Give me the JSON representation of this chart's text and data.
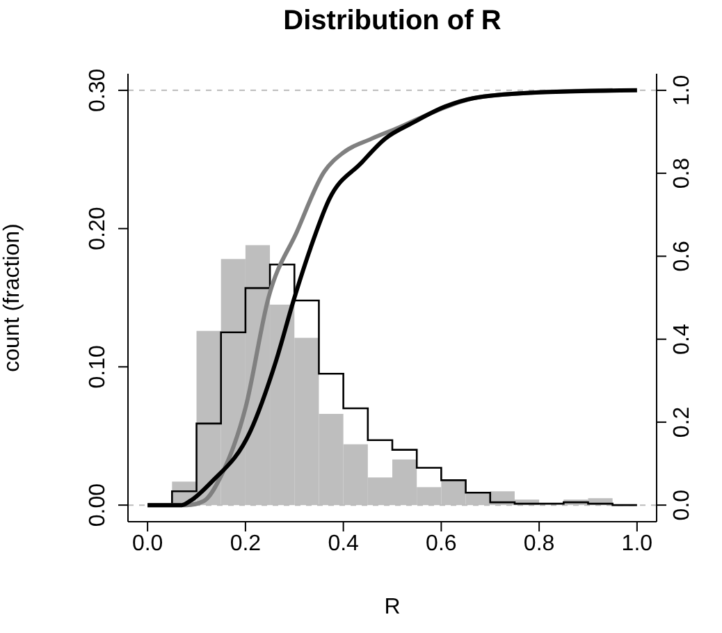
{
  "chart_data": {
    "type": "histogram",
    "title": "Distribution of R",
    "xlabel": "R",
    "ylabel": "count (fraction)",
    "bins": [
      0,
      0.05,
      0.1,
      0.15,
      0.2,
      0.25,
      0.3,
      0.35,
      0.4,
      0.45,
      0.5,
      0.55,
      0.6,
      0.65,
      0.7,
      0.75,
      0.8,
      0.85,
      0.9,
      0.95,
      1.0
    ],
    "series": [
      {
        "type": "histogram",
        "color": "#bebebe",
        "values": [
          0,
          0.017,
          0.126,
          0.178,
          0.188,
          0.145,
          0.121,
          0.066,
          0.044,
          0.02,
          0.033,
          0.013,
          0.018,
          0.009,
          0.01,
          0.004,
          null,
          0.004,
          0.005,
          0
        ]
      },
      {
        "type": "step",
        "color": "#000000",
        "x": [
          0,
          0.05,
          0.1,
          0.15,
          0.2,
          0.25,
          0.3,
          0.35,
          0.4,
          0.45,
          0.5,
          0.55,
          0.6,
          0.65,
          0.7,
          0.75,
          0.8,
          0.85,
          0.9,
          0.95,
          1.0
        ],
        "values": [
          0,
          0.01,
          0.059,
          0.125,
          0.157,
          0.174,
          0.148,
          0.095,
          0.07,
          0.047,
          0.04,
          0.027,
          0.018,
          0.009,
          0.002,
          0.001,
          0.001,
          0.002,
          0.001,
          0,
          0
        ]
      },
      {
        "type": "line",
        "axis": "y2",
        "color": "#808080",
        "x": [
          0,
          0.08,
          0.115,
          0.15,
          0.2,
          0.247,
          0.305,
          0.361,
          0.4,
          0.457,
          0.513,
          0.589,
          0.665,
          0.778,
          0.95
        ],
        "values": [
          0,
          0,
          0.01,
          0.07,
          0.234,
          0.5,
          0.659,
          0.804,
          0.85,
          0.883,
          0.91,
          0.95,
          0.981,
          0.994,
          1.0
        ]
      },
      {
        "type": "line",
        "axis": "y2",
        "color": "#000000",
        "x": [
          0,
          0.07,
          0.087,
          0.13,
          0.21,
          0.262,
          0.3,
          0.333,
          0.371,
          0.4375,
          0.485,
          0.542,
          0.608,
          0.665,
          0.78,
          1.0
        ],
        "values": [
          0,
          0,
          0.01,
          0.055,
          0.178,
          0.346,
          0.5,
          0.62,
          0.737,
          0.826,
          0.883,
          0.922,
          0.961,
          0.981,
          0.994,
          1.0
        ]
      }
    ],
    "xlim": [
      -0.04,
      1.04
    ],
    "xticks": [
      {
        "value": 0,
        "label": "0.0"
      },
      {
        "value": 0.2,
        "label": "0.2"
      },
      {
        "value": 0.4,
        "label": "0.4"
      },
      {
        "value": 0.6,
        "label": "0.6"
      },
      {
        "value": 0.8,
        "label": "0.8"
      },
      {
        "value": 1,
        "label": "1.0"
      }
    ],
    "ylim": [
      -0.012,
      0.312
    ],
    "yticks": [
      {
        "value": 0,
        "label": "0.00"
      },
      {
        "value": 0.1,
        "label": "0.10"
      },
      {
        "value": 0.2,
        "label": "0.20"
      },
      {
        "value": 0.3,
        "label": "0.30"
      }
    ],
    "y2lim": [
      -0.04,
      1.04
    ],
    "y2ticks": [
      {
        "value": 0,
        "label": "0.0"
      },
      {
        "value": 0.2,
        "label": "0.2"
      },
      {
        "value": 0.4,
        "label": "0.4"
      },
      {
        "value": 0.6,
        "label": "0.6"
      },
      {
        "value": 0.8,
        "label": "0.8"
      },
      {
        "value": 1,
        "label": "1.0"
      }
    ],
    "ref_lines": [
      {
        "axis": "y",
        "value": 0,
        "color": "#bbbbbb",
        "line_style": "dashed"
      },
      {
        "axis": "y",
        "value": 0.3,
        "color": "#bbbbbb",
        "line_style": "dashed"
      }
    ],
    "grid": false,
    "legend": false
  }
}
